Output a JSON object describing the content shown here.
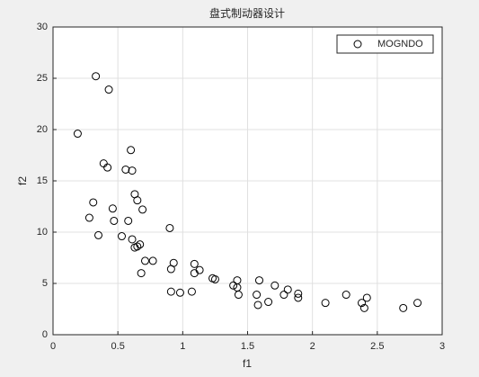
{
  "chart_data": {
    "type": "scatter",
    "title": "盘式制动器设计",
    "x_label": "f1",
    "y_label": "f2",
    "series": [
      {
        "name": "MOGNDO",
        "color": "#000000",
        "x": [
          0.33,
          0.43,
          0.19,
          0.6,
          0.39,
          0.42,
          0.56,
          0.61,
          0.63,
          0.65,
          0.31,
          0.46,
          0.69,
          0.28,
          0.47,
          0.58,
          0.9,
          0.35,
          0.53,
          0.61,
          0.67,
          0.65,
          0.63,
          0.71,
          0.77,
          0.93,
          1.09,
          0.91,
          1.13,
          1.09,
          0.68,
          1.23,
          1.25,
          1.42,
          1.59,
          1.71,
          1.39,
          1.42,
          1.81,
          0.91,
          0.98,
          1.07,
          1.89,
          1.43,
          1.78,
          1.57,
          2.26,
          1.89,
          2.42,
          1.66,
          1.58,
          2.1,
          2.38,
          2.81,
          2.4,
          2.7
        ],
        "values": [
          25.2,
          23.9,
          19.6,
          18.0,
          16.7,
          16.3,
          16.1,
          16.0,
          13.7,
          13.1,
          12.9,
          12.3,
          12.2,
          11.4,
          11.1,
          11.1,
          10.4,
          9.7,
          9.6,
          9.3,
          8.8,
          8.6,
          8.5,
          7.2,
          7.2,
          7.0,
          6.9,
          6.4,
          6.3,
          6.0,
          6.0,
          5.5,
          5.4,
          5.3,
          5.3,
          4.8,
          4.8,
          4.6,
          4.4,
          4.2,
          4.1,
          4.2,
          4.0,
          3.9,
          3.9,
          3.9,
          3.9,
          3.6,
          3.6,
          3.2,
          2.9,
          3.1,
          3.1,
          3.1,
          2.6,
          2.6
        ]
      }
    ],
    "xlim": [
      0,
      3
    ],
    "xticks": [
      0,
      0.5,
      1,
      1.5,
      2,
      2.5,
      3
    ],
    "ylim": [
      0,
      30
    ],
    "yticks": [
      0,
      5,
      10,
      15,
      20,
      25,
      30
    ],
    "grid": true,
    "legend_position": "upper right"
  }
}
